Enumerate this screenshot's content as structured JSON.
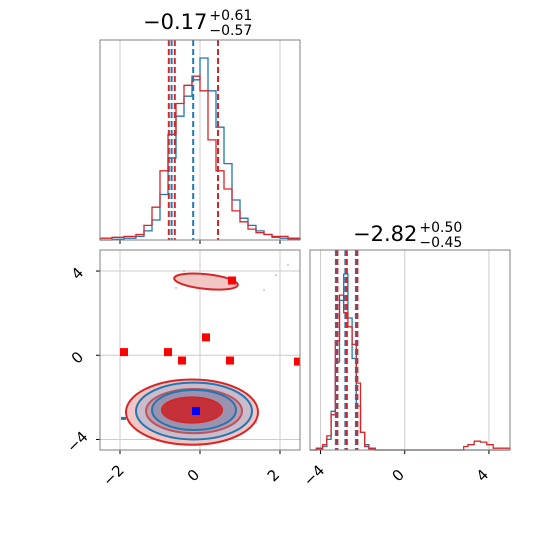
{
  "chart_data": [
    {
      "type": "histogram",
      "panel": "top-left",
      "title": "−0.17",
      "title_upper": "+0.61",
      "title_lower": "−0.57",
      "xlim": [
        -2.5,
        2.5
      ],
      "quantile_lines": {
        "blue": [
          -0.71,
          -0.17,
          0.45
        ],
        "red": [
          -0.78,
          -0.63,
          0.45
        ]
      },
      "series": [
        {
          "color": "#1f77b4",
          "x": [
            -2.5,
            -2.2,
            -1.9,
            -1.6,
            -1.4,
            -1.2,
            -1.0,
            -0.8,
            -0.6,
            -0.4,
            -0.2,
            0.0,
            0.2,
            0.4,
            0.6,
            0.8,
            1.0,
            1.2,
            1.4,
            1.6,
            1.8,
            2.0,
            2.2,
            2.5
          ],
          "values": [
            0,
            0.004,
            0.01,
            0.02,
            0.05,
            0.11,
            0.25,
            0.45,
            0.68,
            0.79,
            0.88,
            1.0,
            0.82,
            0.62,
            0.42,
            0.22,
            0.12,
            0.08,
            0.05,
            0.03,
            0.015,
            0.01,
            0.005,
            0
          ]
        },
        {
          "color": "#d62728",
          "x": [
            -2.5,
            -2.2,
            -1.9,
            -1.6,
            -1.4,
            -1.2,
            -1.0,
            -0.8,
            -0.6,
            -0.4,
            -0.2,
            0.0,
            0.2,
            0.4,
            0.6,
            0.8,
            1.0,
            1.2,
            1.4,
            1.6,
            1.8,
            2.0,
            2.2,
            2.5
          ],
          "values": [
            0.01,
            0.015,
            0.02,
            0.03,
            0.08,
            0.18,
            0.38,
            0.58,
            0.75,
            0.85,
            0.9,
            0.82,
            0.55,
            0.38,
            0.28,
            0.16,
            0.1,
            0.06,
            0.04,
            0.03,
            0.02,
            0.02,
            0.01,
            0.01
          ]
        }
      ]
    },
    {
      "type": "histogram",
      "panel": "bottom-right",
      "title": "−2.82",
      "title_upper": "+0.50",
      "title_lower": "−0.45",
      "xlim": [
        -4.5,
        5.0
      ],
      "x_ticks": [
        "−4",
        "0",
        "4"
      ],
      "quantile_lines": {
        "blue": [
          -3.27,
          -2.82,
          -2.32
        ],
        "red": [
          -3.27,
          -2.82,
          -2.32
        ]
      },
      "series": [
        {
          "color": "#1f77b4",
          "x": [
            -4.5,
            -4.2,
            -3.9,
            -3.7,
            -3.5,
            -3.3,
            -3.1,
            -2.9,
            -2.7,
            -2.5,
            -2.3,
            -2.1,
            -1.9,
            -1.7,
            -1.4,
            5.0
          ],
          "values": [
            0,
            0.005,
            0.02,
            0.06,
            0.22,
            0.5,
            0.85,
            1.0,
            0.75,
            0.52,
            0.25,
            0.1,
            0.03,
            0.005,
            0,
            0
          ]
        },
        {
          "color": "#d62728",
          "x": [
            -4.5,
            -4.2,
            -3.9,
            -3.7,
            -3.5,
            -3.3,
            -3.1,
            -2.9,
            -2.7,
            -2.5,
            -2.3,
            -2.1,
            -1.9,
            -1.7,
            -1.4,
            2.8,
            3.0,
            3.3,
            3.6,
            3.9,
            4.2,
            5.0
          ],
          "values": [
            0,
            0.01,
            0.03,
            0.08,
            0.2,
            0.62,
            0.88,
            0.78,
            0.7,
            0.6,
            0.38,
            0.1,
            0.02,
            0.01,
            0.0,
            0.02,
            0.03,
            0.05,
            0.045,
            0.03,
            0.01,
            0
          ]
        }
      ]
    },
    {
      "type": "scatter",
      "panel": "bottom-left",
      "xlim": [
        -2.5,
        2.5
      ],
      "ylim": [
        -4.5,
        5.0
      ],
      "x_ticks": [
        "−2",
        "0",
        "2"
      ],
      "y_ticks": [
        "−4",
        "0",
        "4"
      ],
      "red_points": [
        {
          "x": -1.9,
          "y": 0.15
        },
        {
          "x": -0.8,
          "y": 0.15
        },
        {
          "x": -0.45,
          "y": -0.25
        },
        {
          "x": 0.15,
          "y": 0.85
        },
        {
          "x": 0.75,
          "y": -0.25
        },
        {
          "x": 0.8,
          "y": 3.55
        },
        {
          "x": 2.45,
          "y": -0.3
        }
      ],
      "blue_points": [
        {
          "x": -0.1,
          "y": -2.65
        }
      ],
      "contours": {
        "blue": [
          {
            "cx": -0.15,
            "cy": -2.65,
            "rx": 1.45,
            "ry": 1.35
          },
          {
            "cx": -0.15,
            "cy": -2.6,
            "rx": 1.05,
            "ry": 0.95
          },
          {
            "cx": -0.2,
            "cy": -2.6,
            "rx": 0.65,
            "ry": 0.6
          }
        ],
        "red": [
          {
            "cx": -0.2,
            "cy": -2.7,
            "rx": 1.65,
            "ry": 1.55
          },
          {
            "cx": -0.15,
            "cy": -2.65,
            "rx": 1.2,
            "ry": 1.05
          },
          {
            "cx": -0.2,
            "cy": -2.6,
            "rx": 0.75,
            "ry": 0.6
          }
        ],
        "red_upper_blob": {
          "cx": 0.15,
          "cy": 3.5,
          "rx": 0.8,
          "ry": 0.35
        }
      }
    }
  ]
}
